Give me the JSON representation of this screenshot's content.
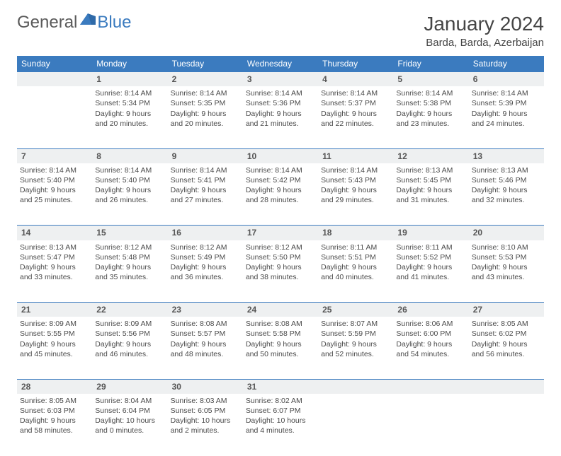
{
  "logo": {
    "text1": "General",
    "text2": "Blue"
  },
  "title": "January 2024",
  "location": "Barda, Barda, Azerbaijan",
  "colors": {
    "header_bg": "#3b7bbf",
    "header_text": "#ffffff",
    "daynum_bg": "#eef0f1",
    "daynum_border": "#3b7bbf",
    "body_text": "#4a4a4a",
    "page_bg": "#ffffff"
  },
  "weekdays": [
    "Sunday",
    "Monday",
    "Tuesday",
    "Wednesday",
    "Thursday",
    "Friday",
    "Saturday"
  ],
  "weeks": [
    {
      "nums": [
        "",
        "1",
        "2",
        "3",
        "4",
        "5",
        "6"
      ],
      "cells": [
        [],
        [
          "Sunrise: 8:14 AM",
          "Sunset: 5:34 PM",
          "Daylight: 9 hours",
          "and 20 minutes."
        ],
        [
          "Sunrise: 8:14 AM",
          "Sunset: 5:35 PM",
          "Daylight: 9 hours",
          "and 20 minutes."
        ],
        [
          "Sunrise: 8:14 AM",
          "Sunset: 5:36 PM",
          "Daylight: 9 hours",
          "and 21 minutes."
        ],
        [
          "Sunrise: 8:14 AM",
          "Sunset: 5:37 PM",
          "Daylight: 9 hours",
          "and 22 minutes."
        ],
        [
          "Sunrise: 8:14 AM",
          "Sunset: 5:38 PM",
          "Daylight: 9 hours",
          "and 23 minutes."
        ],
        [
          "Sunrise: 8:14 AM",
          "Sunset: 5:39 PM",
          "Daylight: 9 hours",
          "and 24 minutes."
        ]
      ]
    },
    {
      "nums": [
        "7",
        "8",
        "9",
        "10",
        "11",
        "12",
        "13"
      ],
      "cells": [
        [
          "Sunrise: 8:14 AM",
          "Sunset: 5:40 PM",
          "Daylight: 9 hours",
          "and 25 minutes."
        ],
        [
          "Sunrise: 8:14 AM",
          "Sunset: 5:40 PM",
          "Daylight: 9 hours",
          "and 26 minutes."
        ],
        [
          "Sunrise: 8:14 AM",
          "Sunset: 5:41 PM",
          "Daylight: 9 hours",
          "and 27 minutes."
        ],
        [
          "Sunrise: 8:14 AM",
          "Sunset: 5:42 PM",
          "Daylight: 9 hours",
          "and 28 minutes."
        ],
        [
          "Sunrise: 8:14 AM",
          "Sunset: 5:43 PM",
          "Daylight: 9 hours",
          "and 29 minutes."
        ],
        [
          "Sunrise: 8:13 AM",
          "Sunset: 5:45 PM",
          "Daylight: 9 hours",
          "and 31 minutes."
        ],
        [
          "Sunrise: 8:13 AM",
          "Sunset: 5:46 PM",
          "Daylight: 9 hours",
          "and 32 minutes."
        ]
      ]
    },
    {
      "nums": [
        "14",
        "15",
        "16",
        "17",
        "18",
        "19",
        "20"
      ],
      "cells": [
        [
          "Sunrise: 8:13 AM",
          "Sunset: 5:47 PM",
          "Daylight: 9 hours",
          "and 33 minutes."
        ],
        [
          "Sunrise: 8:12 AM",
          "Sunset: 5:48 PM",
          "Daylight: 9 hours",
          "and 35 minutes."
        ],
        [
          "Sunrise: 8:12 AM",
          "Sunset: 5:49 PM",
          "Daylight: 9 hours",
          "and 36 minutes."
        ],
        [
          "Sunrise: 8:12 AM",
          "Sunset: 5:50 PM",
          "Daylight: 9 hours",
          "and 38 minutes."
        ],
        [
          "Sunrise: 8:11 AM",
          "Sunset: 5:51 PM",
          "Daylight: 9 hours",
          "and 40 minutes."
        ],
        [
          "Sunrise: 8:11 AM",
          "Sunset: 5:52 PM",
          "Daylight: 9 hours",
          "and 41 minutes."
        ],
        [
          "Sunrise: 8:10 AM",
          "Sunset: 5:53 PM",
          "Daylight: 9 hours",
          "and 43 minutes."
        ]
      ]
    },
    {
      "nums": [
        "21",
        "22",
        "23",
        "24",
        "25",
        "26",
        "27"
      ],
      "cells": [
        [
          "Sunrise: 8:09 AM",
          "Sunset: 5:55 PM",
          "Daylight: 9 hours",
          "and 45 minutes."
        ],
        [
          "Sunrise: 8:09 AM",
          "Sunset: 5:56 PM",
          "Daylight: 9 hours",
          "and 46 minutes."
        ],
        [
          "Sunrise: 8:08 AM",
          "Sunset: 5:57 PM",
          "Daylight: 9 hours",
          "and 48 minutes."
        ],
        [
          "Sunrise: 8:08 AM",
          "Sunset: 5:58 PM",
          "Daylight: 9 hours",
          "and 50 minutes."
        ],
        [
          "Sunrise: 8:07 AM",
          "Sunset: 5:59 PM",
          "Daylight: 9 hours",
          "and 52 minutes."
        ],
        [
          "Sunrise: 8:06 AM",
          "Sunset: 6:00 PM",
          "Daylight: 9 hours",
          "and 54 minutes."
        ],
        [
          "Sunrise: 8:05 AM",
          "Sunset: 6:02 PM",
          "Daylight: 9 hours",
          "and 56 minutes."
        ]
      ]
    },
    {
      "nums": [
        "28",
        "29",
        "30",
        "31",
        "",
        "",
        ""
      ],
      "cells": [
        [
          "Sunrise: 8:05 AM",
          "Sunset: 6:03 PM",
          "Daylight: 9 hours",
          "and 58 minutes."
        ],
        [
          "Sunrise: 8:04 AM",
          "Sunset: 6:04 PM",
          "Daylight: 10 hours",
          "and 0 minutes."
        ],
        [
          "Sunrise: 8:03 AM",
          "Sunset: 6:05 PM",
          "Daylight: 10 hours",
          "and 2 minutes."
        ],
        [
          "Sunrise: 8:02 AM",
          "Sunset: 6:07 PM",
          "Daylight: 10 hours",
          "and 4 minutes."
        ],
        [],
        [],
        []
      ]
    }
  ]
}
